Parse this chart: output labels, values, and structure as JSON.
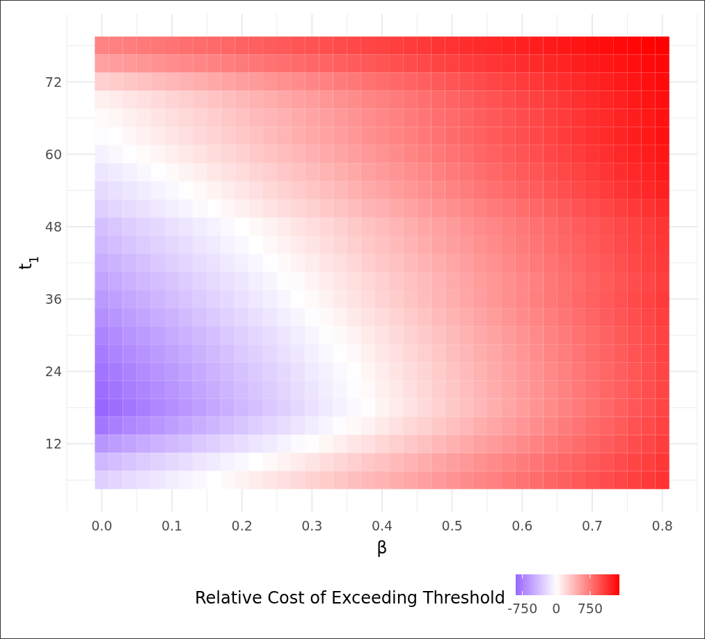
{
  "chart_data": {
    "type": "heatmap",
    "xlabel": "β",
    "ylabel": "t$_{1}$",
    "clabel": "Relative Cost of Exceeding Threshold",
    "x": [
      0,
      0.02,
      0.04,
      0.06,
      0.08,
      0.1,
      0.12,
      0.14,
      0.16,
      0.18,
      0.2,
      0.22,
      0.24,
      0.26,
      0.28,
      0.3,
      0.32,
      0.34,
      0.36,
      0.38,
      0.4,
      0.42,
      0.44,
      0.46,
      0.48,
      0.5,
      0.52,
      0.54,
      0.56,
      0.58,
      0.6,
      0.62,
      0.64,
      0.66,
      0.68,
      0.7,
      0.72,
      0.74,
      0.76,
      0.78,
      0.8
    ],
    "y": [
      78,
      75,
      72,
      69,
      66,
      63,
      60,
      57,
      54,
      51,
      48,
      45,
      42,
      39,
      36,
      33,
      30,
      27,
      24,
      21,
      18,
      15,
      12,
      9,
      6
    ],
    "cells": [
      [
        680,
        698,
        716,
        734,
        752,
        770,
        788,
        806,
        824,
        842,
        860,
        878,
        896,
        914,
        932,
        950,
        968,
        986,
        1004,
        1022,
        1040,
        1058,
        1076,
        1094,
        1112,
        1130,
        1148,
        1166,
        1184,
        1202,
        1220,
        1238,
        1256,
        1274,
        1292,
        1310,
        1328,
        1346,
        1364,
        1382,
        1400
      ],
      [
        520,
        541,
        562,
        583,
        604,
        625,
        646,
        667,
        688,
        709,
        730,
        751,
        772,
        793,
        814,
        835,
        856,
        877,
        898,
        919,
        940,
        961,
        982,
        1003,
        1024,
        1045,
        1066,
        1087,
        1108,
        1129,
        1150,
        1171,
        1192,
        1213,
        1234,
        1255,
        1276,
        1297,
        1318,
        1339,
        1360
      ],
      [
        260,
        287,
        314,
        341,
        368,
        395,
        422,
        449,
        476,
        503,
        530,
        557,
        584,
        611,
        638,
        665,
        692,
        719,
        746,
        773,
        800,
        827,
        854,
        881,
        908,
        935,
        962,
        989,
        1016,
        1043,
        1070,
        1097,
        1124,
        1151,
        1178,
        1205,
        1232,
        1259,
        1286,
        1313,
        1340
      ],
      [
        80,
        111,
        142,
        173,
        204,
        235,
        266,
        297,
        328,
        359,
        390,
        421,
        452,
        483,
        514,
        545,
        576,
        607,
        638,
        669,
        700,
        731,
        762,
        793,
        824,
        855,
        886,
        917,
        948,
        979,
        1010,
        1041,
        1072,
        1103,
        1134,
        1165,
        1196,
        1227,
        1258,
        1289,
        1320
      ],
      [
        20,
        52,
        84,
        116,
        148,
        180,
        212,
        244,
        276,
        308,
        340,
        372,
        404,
        436,
        468,
        500,
        532,
        564,
        596,
        628,
        660,
        692,
        724,
        756,
        788,
        820,
        852,
        884,
        916,
        948,
        980,
        1012,
        1044,
        1076,
        1108,
        1140,
        1172,
        1204,
        1236,
        1268,
        1300
      ],
      [
        -20,
        13,
        46,
        79,
        112,
        145,
        178,
        211,
        244,
        277,
        310,
        343,
        376,
        409,
        442,
        475,
        508,
        541,
        574,
        607,
        640,
        673,
        706,
        739,
        772,
        805,
        838,
        871,
        904,
        937,
        970,
        1003,
        1036,
        1069,
        1102,
        1135,
        1168,
        1201,
        1234,
        1267,
        1300
      ],
      [
        -80,
        -46,
        -12,
        22,
        56,
        90,
        124,
        158,
        192,
        226,
        260,
        294,
        328,
        362,
        396,
        430,
        464,
        498,
        532,
        566,
        600,
        634,
        668,
        702,
        736,
        770,
        804,
        838,
        872,
        906,
        940,
        974,
        1008,
        1042,
        1076,
        1110,
        1144,
        1178,
        1212,
        1246,
        1280
      ],
      [
        -150,
        -115,
        -80,
        -45,
        -10,
        25,
        60,
        95,
        130,
        165,
        200,
        235,
        270,
        305,
        340,
        375,
        410,
        445,
        480,
        515,
        550,
        585,
        620,
        655,
        690,
        725,
        760,
        795,
        830,
        865,
        900,
        935,
        970,
        1005,
        1040,
        1075,
        1110,
        1145,
        1180,
        1215,
        1250
      ],
      [
        -220,
        -184,
        -148,
        -112,
        -76,
        -40,
        -4,
        32,
        68,
        104,
        140,
        176,
        212,
        248,
        284,
        320,
        356,
        392,
        428,
        464,
        500,
        536,
        572,
        608,
        644,
        680,
        716,
        752,
        788,
        824,
        860,
        896,
        932,
        968,
        1004,
        1040,
        1076,
        1112,
        1148,
        1184,
        1220
      ],
      [
        -280,
        -244,
        -208,
        -172,
        -136,
        -100,
        -64,
        -28,
        8,
        44,
        80,
        116,
        152,
        188,
        224,
        260,
        296,
        332,
        368,
        404,
        440,
        476,
        512,
        548,
        584,
        620,
        656,
        692,
        728,
        764,
        800,
        836,
        872,
        908,
        944,
        980,
        1016,
        1052,
        1088,
        1124,
        1160
      ],
      [
        -370,
        -333,
        -296,
        -259,
        -222,
        -185,
        -148,
        -111,
        -74,
        -37,
        0,
        37,
        74,
        111,
        148,
        185,
        222,
        259,
        296,
        333,
        370,
        407,
        444,
        481,
        518,
        555,
        592,
        629,
        666,
        703,
        740,
        777,
        814,
        851,
        888,
        925,
        962,
        999,
        1036,
        1073,
        1110
      ],
      [
        -420,
        -382,
        -344,
        -306,
        -268,
        -230,
        -192,
        -154,
        -116,
        -78,
        -40,
        -2,
        36,
        74,
        112,
        150,
        188,
        226,
        264,
        302,
        340,
        378,
        416,
        454,
        492,
        530,
        568,
        606,
        644,
        682,
        720,
        758,
        796,
        834,
        872,
        910,
        948,
        986,
        1024,
        1062,
        1100
      ],
      [
        -480,
        -441,
        -402,
        -363,
        -324,
        -285,
        -246,
        -207,
        -168,
        -129,
        -90,
        -51,
        -12,
        27,
        66,
        105,
        144,
        183,
        222,
        261,
        300,
        339,
        378,
        417,
        456,
        495,
        534,
        573,
        612,
        651,
        690,
        729,
        768,
        807,
        846,
        885,
        924,
        963,
        1002,
        1041,
        1080
      ],
      [
        -540,
        -500,
        -460,
        -420,
        -380,
        -340,
        -300,
        -260,
        -220,
        -180,
        -140,
        -100,
        -60,
        -20,
        20,
        60,
        100,
        140,
        180,
        220,
        260,
        300,
        340,
        380,
        420,
        460,
        500,
        540,
        580,
        620,
        660,
        700,
        740,
        780,
        820,
        860,
        900,
        940,
        980,
        1020,
        1060
      ],
      [
        -600,
        -558,
        -516,
        -474,
        -432,
        -390,
        -348,
        -306,
        -264,
        -222,
        -180,
        -138,
        -96,
        -54,
        -12,
        30,
        72,
        114,
        156,
        198,
        240,
        282,
        324,
        366,
        408,
        450,
        492,
        534,
        576,
        618,
        660,
        702,
        744,
        786,
        828,
        870,
        912,
        954,
        996,
        1038,
        1080
      ],
      [
        -660,
        -617,
        -574,
        -531,
        -488,
        -445,
        -402,
        -359,
        -316,
        -273,
        -230,
        -187,
        -144,
        -101,
        -58,
        -15,
        28,
        71,
        114,
        157,
        200,
        243,
        286,
        329,
        372,
        415,
        458,
        501,
        544,
        587,
        630,
        673,
        716,
        759,
        802,
        845,
        888,
        931,
        974,
        1017,
        1060
      ],
      [
        -720,
        -676,
        -632,
        -588,
        -544,
        -500,
        -456,
        -412,
        -368,
        -324,
        -280,
        -236,
        -192,
        -148,
        -104,
        -60,
        -16,
        28,
        72,
        116,
        160,
        204,
        248,
        292,
        336,
        380,
        424,
        468,
        512,
        556,
        600,
        644,
        688,
        732,
        776,
        820,
        864,
        908,
        952,
        996,
        1040
      ],
      [
        -770,
        -725,
        -680,
        -635,
        -590,
        -545,
        -500,
        -455,
        -410,
        -365,
        -320,
        -275,
        -230,
        -185,
        -140,
        -95,
        -50,
        -5,
        40,
        85,
        130,
        175,
        220,
        265,
        310,
        355,
        400,
        445,
        490,
        535,
        580,
        625,
        670,
        715,
        760,
        805,
        850,
        895,
        940,
        985,
        1030
      ],
      [
        -820,
        -774,
        -728,
        -682,
        -636,
        -590,
        -544,
        -498,
        -452,
        -406,
        -360,
        -314,
        -268,
        -222,
        -176,
        -130,
        -84,
        -38,
        8,
        54,
        100,
        146,
        192,
        238,
        284,
        330,
        376,
        422,
        468,
        514,
        560,
        606,
        652,
        698,
        744,
        790,
        836,
        882,
        928,
        974,
        1020
      ],
      [
        -860,
        -813,
        -766,
        -719,
        -672,
        -625,
        -578,
        -531,
        -484,
        -437,
        -390,
        -343,
        -296,
        -249,
        -202,
        -155,
        -108,
        -61,
        -14,
        33,
        80,
        127,
        174,
        221,
        268,
        315,
        362,
        409,
        456,
        503,
        550,
        597,
        644,
        691,
        738,
        785,
        832,
        879,
        926,
        973,
        1020
      ],
      [
        -900,
        -852,
        -804,
        -756,
        -708,
        -660,
        -612,
        -564,
        -516,
        -468,
        -420,
        -372,
        -324,
        -276,
        -228,
        -180,
        -132,
        -84,
        -36,
        12,
        60,
        108,
        156,
        204,
        252,
        300,
        348,
        396,
        444,
        492,
        540,
        588,
        636,
        684,
        732,
        780,
        828,
        876,
        924,
        972,
        1020
      ],
      [
        -800,
        -754,
        -708,
        -662,
        -616,
        -570,
        -524,
        -478,
        -432,
        -386,
        -340,
        -294,
        -248,
        -202,
        -156,
        -110,
        -64,
        -18,
        28,
        74,
        120,
        166,
        212,
        258,
        304,
        350,
        396,
        442,
        488,
        534,
        580,
        626,
        672,
        718,
        764,
        810,
        856,
        902,
        948,
        994,
        1040
      ],
      [
        -620,
        -578,
        -536,
        -494,
        -452,
        -410,
        -368,
        -326,
        -284,
        -242,
        -200,
        -158,
        -116,
        -74,
        -32,
        10,
        52,
        94,
        136,
        178,
        220,
        262,
        304,
        346,
        388,
        430,
        472,
        514,
        556,
        598,
        640,
        682,
        724,
        766,
        808,
        850,
        892,
        934,
        976,
        1018,
        1060
      ],
      [
        -420,
        -382,
        -344,
        -306,
        -268,
        -230,
        -192,
        -154,
        -116,
        -78,
        -40,
        -2,
        36,
        74,
        112,
        150,
        188,
        226,
        264,
        302,
        340,
        378,
        416,
        454,
        492,
        530,
        568,
        606,
        644,
        682,
        720,
        758,
        796,
        834,
        872,
        910,
        948,
        986,
        1024,
        1062,
        1100
      ],
      [
        -280,
        -245,
        -210,
        -175,
        -140,
        -105,
        -70,
        -35,
        0,
        35,
        70,
        105,
        140,
        175,
        210,
        245,
        280,
        315,
        350,
        385,
        420,
        455,
        490,
        525,
        560,
        595,
        630,
        665,
        700,
        735,
        770,
        805,
        840,
        875,
        910,
        945,
        980,
        1015,
        1050,
        1085,
        1120
      ]
    ],
    "xlim": [
      -0.051,
      0.851
    ],
    "ylim": [
      0.75,
      83.25
    ],
    "xticks": [
      {
        "value": -0.05,
        "label": null
      },
      {
        "value": 0,
        "label": "0.0"
      },
      {
        "value": 0.05,
        "label": null
      },
      0.1,
      {
        "value": 0.15,
        "label": null
      },
      0.2,
      {
        "value": 0.25,
        "label": null
      },
      0.3,
      {
        "value": 0.35,
        "label": null
      },
      0.4,
      {
        "value": 0.45,
        "label": null
      },
      0.5,
      {
        "value": 0.55,
        "label": null
      },
      0.6,
      {
        "value": 0.65,
        "label": null
      },
      0.7,
      {
        "value": 0.75,
        "label": null
      },
      0.8,
      {
        "value": 0.85,
        "label": null
      }
    ],
    "yticks": [
      {
        "value": 6,
        "label": null
      },
      12,
      {
        "value": 18,
        "label": null
      },
      24,
      {
        "value": 30,
        "label": null
      },
      36,
      {
        "value": 42,
        "label": null
      },
      48,
      {
        "value": 54,
        "label": null
      },
      60,
      {
        "value": 66,
        "label": null
      },
      72,
      {
        "value": 78,
        "label": null
      }
    ],
    "clim": [
      -900,
      1400
    ],
    "cticks": [
      -750,
      0,
      750
    ],
    "grid": true
  }
}
